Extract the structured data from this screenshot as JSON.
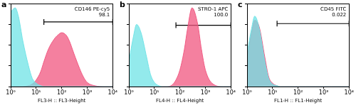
{
  "chart_data": [
    {
      "type": "line",
      "panel": "a",
      "x_label": "FL3-H :: FL3-Height",
      "log": "x",
      "grid": false,
      "tick_labels": "x",
      "xlim": [
        1,
        10000
      ],
      "xticks": [
        {
          "value": 1,
          "label": "10⁰"
        },
        {
          "value": 10,
          "label": "10¹"
        },
        {
          "value": 100,
          "label": "10²"
        },
        {
          "value": 1000,
          "label": "10³"
        },
        {
          "value": 10000,
          "label": "10⁴"
        }
      ],
      "ylim": [
        0,
        100
      ],
      "yticks": [
        0,
        25,
        50,
        75,
        100
      ],
      "x": [
        1,
        1.5,
        2,
        3,
        5,
        7,
        10,
        15,
        20,
        30,
        50,
        70,
        100,
        150,
        200,
        300,
        500,
        700,
        1000,
        2000,
        5000,
        10000
      ],
      "series": [
        {
          "color": "#6fe3e6",
          "values": [
            90,
            95,
            85,
            55,
            25,
            10,
            4,
            1,
            0,
            0,
            0,
            0,
            0,
            0,
            0,
            0,
            0,
            0,
            0,
            0,
            0,
            0
          ]
        },
        {
          "color": "#f0557f",
          "values": [
            0,
            0,
            0,
            0,
            1,
            3,
            8,
            18,
            30,
            45,
            57,
            62,
            65,
            62,
            55,
            40,
            22,
            12,
            5,
            1,
            0,
            0
          ]
        }
      ],
      "gate": {
        "label": "CD146 PE-cy5",
        "percent": 98.1,
        "x": [
          20,
          10000
        ],
        "y": 78
      }
    },
    {
      "type": "line",
      "panel": "b",
      "x_label": "FL4-H :: FL4-Height",
      "log": "x",
      "grid": false,
      "tick_labels": "x",
      "xlim": [
        1,
        10000
      ],
      "xticks": [
        {
          "value": 1,
          "label": "10⁰"
        },
        {
          "value": 10,
          "label": "10¹"
        },
        {
          "value": 100,
          "label": "10²"
        },
        {
          "value": 1000,
          "label": "10³"
        },
        {
          "value": 10000,
          "label": "10⁴"
        }
      ],
      "ylim": [
        0,
        100
      ],
      "yticks": [
        0,
        25,
        50,
        75,
        100
      ],
      "x": [
        1,
        1.5,
        2,
        3,
        5,
        7,
        10,
        15,
        20,
        30,
        50,
        70,
        100,
        150,
        200,
        300,
        500,
        700,
        1000,
        2000,
        5000,
        10000
      ],
      "series": [
        {
          "color": "#6fe3e6",
          "values": [
            30,
            60,
            75,
            65,
            35,
            15,
            5,
            1,
            0,
            0,
            0,
            0,
            0,
            0,
            0,
            0,
            0,
            0,
            0,
            0,
            0,
            0
          ]
        },
        {
          "color": "#f0557f",
          "values": [
            0,
            0,
            0,
            0,
            0,
            0,
            0,
            0,
            0,
            0,
            2,
            8,
            20,
            45,
            70,
            95,
            75,
            45,
            20,
            3,
            0,
            0
          ]
        }
      ],
      "gate": {
        "label": "STRO-1 APC",
        "percent": 100,
        "percent_label": "100.0",
        "x": [
          70,
          10000
        ],
        "y": 74
      }
    },
    {
      "type": "line",
      "panel": "c",
      "x_label": "FL1-H :: FL1-Height",
      "log": "x",
      "grid": false,
      "tick_labels": "x",
      "xlim": [
        1,
        10000
      ],
      "xticks": [
        {
          "value": 1,
          "label": "10⁰"
        },
        {
          "value": 10,
          "label": "10¹"
        },
        {
          "value": 100,
          "label": "10²"
        },
        {
          "value": 1000,
          "label": "10³"
        },
        {
          "value": 10000,
          "label": "10⁴"
        }
      ],
      "ylim": [
        0,
        100
      ],
      "yticks": [
        0,
        25,
        50,
        75,
        100
      ],
      "x": [
        1,
        1.5,
        2,
        3,
        5,
        7,
        10,
        15,
        20,
        30,
        50,
        70,
        100,
        150,
        200,
        300,
        500,
        700,
        1000,
        2000,
        5000,
        10000
      ],
      "series": [
        {
          "color": "#6fe3e6",
          "values": [
            40,
            70,
            85,
            70,
            30,
            10,
            3,
            1,
            0,
            0,
            0,
            0,
            0,
            0,
            0,
            0,
            0,
            0,
            0,
            0,
            0,
            0
          ]
        },
        {
          "color": "#f0557f",
          "values": [
            35,
            65,
            80,
            72,
            35,
            12,
            4,
            1,
            0,
            0,
            0,
            0,
            0,
            0,
            0,
            0,
            0,
            0,
            0,
            0,
            0,
            0
          ]
        }
      ],
      "gate": {
        "label": "CD45 FITC",
        "percent": 0.022,
        "x": [
          15,
          10000
        ],
        "y": 76
      }
    }
  ]
}
